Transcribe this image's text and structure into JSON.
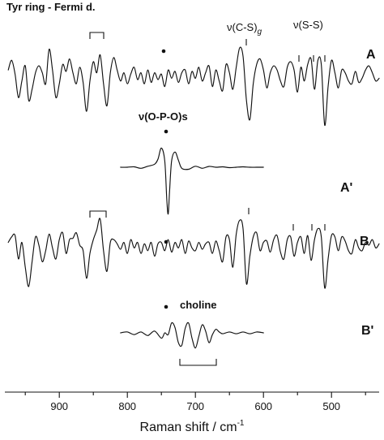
{
  "chart_data": {
    "type": "line",
    "xlabel": "Raman shift / cm",
    "xlabel_sup": "-1",
    "x_ticks": [
      900,
      800,
      700,
      600,
      500
    ],
    "xlim": [
      980,
      430
    ],
    "annotations": {
      "tyr": "Tyr ring - Fermi d.",
      "cs": "ν(C-S)",
      "cs_sub": "g",
      "ss": "ν(S-S)",
      "opo": "ν(O-P-O)s",
      "choline": "choline"
    },
    "series": [
      {
        "name": "A",
        "x": [
          975,
          970,
          965,
          960,
          955,
          950,
          945,
          940,
          935,
          930,
          925,
          920,
          915,
          910,
          905,
          900,
          895,
          890,
          885,
          880,
          875,
          870,
          865,
          860,
          855,
          850,
          845,
          840,
          835,
          830,
          825,
          820,
          815,
          810,
          805,
          800,
          795,
          790,
          785,
          780,
          775,
          770,
          765,
          760,
          755,
          750,
          745,
          740,
          735,
          730,
          725,
          720,
          715,
          710,
          705,
          700,
          695,
          690,
          685,
          680,
          675,
          670,
          665,
          660,
          655,
          650,
          645,
          640,
          635,
          630,
          625,
          620,
          615,
          610,
          605,
          600,
          595,
          590,
          585,
          580,
          575,
          570,
          565,
          560,
          555,
          550,
          545,
          540,
          535,
          530,
          525,
          520,
          515,
          510,
          505,
          500,
          495,
          490,
          485,
          480,
          475,
          470,
          465,
          460,
          455,
          450,
          445,
          440,
          435,
          430
        ],
        "y": [
          0.2,
          0.55,
          0.05,
          -0.8,
          -0.2,
          0.35,
          -0.9,
          -0.5,
          0.1,
          0.35,
          0.1,
          -0.3,
          0.95,
          0.2,
          -0.8,
          -0.3,
          0.4,
          0.15,
          0.6,
          0.1,
          -0.3,
          0.3,
          -0.25,
          -1.3,
          -0.2,
          0.5,
          0.1,
          0.75,
          -0.3,
          -1.1,
          0.1,
          0.65,
          0.2,
          -0.2,
          0.1,
          -0.3,
          0.05,
          0.3,
          -0.15,
          0.1,
          -0.3,
          0.2,
          -0.25,
          0.1,
          -0.15,
          0.05,
          -0.4,
          0.2,
          -0.1,
          0.15,
          -0.25,
          0.1,
          0.2,
          -0.3,
          0.15,
          -0.1,
          0.3,
          -0.2,
          0.1,
          0.35,
          -0.4,
          0.2,
          -0.2,
          -0.55,
          0.4,
          0.1,
          -0.5,
          0.3,
          1.0,
          0.7,
          -0.9,
          -1.6,
          -0.3,
          0.4,
          0.6,
          0.2,
          -0.45,
          0.1,
          0.35,
          0.2,
          -0.2,
          -0.4,
          0.3,
          0.5,
          0.2,
          -0.6,
          0.3,
          -0.2,
          0.4,
          0.6,
          -0.5,
          0.55,
          0.4,
          -1.8,
          -0.4,
          0.55,
          0.1,
          -0.45,
          0.2,
          0.1,
          -0.2,
          -0.3,
          0.15,
          -0.25,
          -0.1,
          0.2,
          0.35,
          0.1,
          -0.2,
          -0.1
        ]
      },
      {
        "name": "A'",
        "x": [
          810,
          800,
          790,
          780,
          770,
          760,
          755,
          750,
          745,
          742,
          740,
          738,
          735,
          730,
          725,
          720,
          710,
          700,
          690,
          680,
          670,
          660,
          650,
          640,
          630,
          620,
          610,
          600
        ],
        "y": [
          0.0,
          0.0,
          0.02,
          -0.05,
          0.05,
          0.15,
          0.4,
          0.95,
          0.3,
          -1.6,
          -2.3,
          -1.2,
          0.3,
          0.75,
          0.35,
          -0.05,
          -0.1,
          0.05,
          -0.05,
          0.04,
          0.0,
          0.02,
          -0.02,
          0.0,
          0.02,
          0.0,
          0.0,
          0.0
        ]
      },
      {
        "name": "B",
        "x": [
          975,
          970,
          965,
          960,
          955,
          950,
          945,
          940,
          935,
          930,
          925,
          920,
          915,
          910,
          905,
          900,
          895,
          890,
          885,
          880,
          875,
          870,
          865,
          860,
          855,
          850,
          845,
          840,
          835,
          830,
          825,
          820,
          815,
          810,
          805,
          800,
          795,
          790,
          785,
          780,
          775,
          770,
          765,
          760,
          755,
          750,
          745,
          740,
          735,
          730,
          725,
          720,
          715,
          710,
          705,
          700,
          695,
          690,
          685,
          680,
          675,
          670,
          665,
          660,
          655,
          650,
          645,
          640,
          635,
          630,
          625,
          620,
          615,
          610,
          605,
          600,
          595,
          590,
          585,
          580,
          575,
          570,
          565,
          560,
          555,
          550,
          545,
          540,
          535,
          530,
          525,
          520,
          515,
          510,
          505,
          500,
          495,
          490,
          485,
          480,
          475,
          470,
          465,
          460,
          455,
          450,
          445,
          440,
          435,
          430
        ],
        "y": [
          0.1,
          0.3,
          0.35,
          -0.5,
          0.1,
          -0.8,
          -1.5,
          -0.6,
          0.3,
          0.0,
          -0.6,
          -0.2,
          0.4,
          -0.1,
          -0.5,
          0.2,
          0.45,
          -0.3,
          0.2,
          0.25,
          0.45,
          0.0,
          -0.2,
          -1.2,
          -0.3,
          0.2,
          0.55,
          0.95,
          -0.2,
          -0.95,
          0.1,
          0.2,
          0.05,
          -0.15,
          0.1,
          -0.3,
          0.2,
          -0.1,
          0.1,
          -0.3,
          0.05,
          -0.2,
          0.1,
          -0.4,
          0.05,
          0.1,
          -0.2,
          0.2,
          -0.25,
          0.1,
          -0.1,
          0.2,
          -0.3,
          0.15,
          -0.1,
          -0.2,
          0.1,
          -0.15,
          0.05,
          0.1,
          -0.3,
          0.15,
          -0.2,
          -0.6,
          0.3,
          0.2,
          -0.8,
          0.4,
          0.9,
          0.6,
          -1.4,
          -0.4,
          0.3,
          0.45,
          -0.2,
          0.1,
          0.15,
          -0.25,
          0.2,
          0.35,
          -0.25,
          -0.5,
          0.2,
          0.3,
          -0.4,
          0.1,
          0.3,
          -0.3,
          0.35,
          -0.55,
          0.2,
          0.6,
          0.3,
          -1.55,
          -0.5,
          0.35,
          0.3,
          -0.2,
          0.3,
          0.15,
          -0.2,
          -0.3,
          0.2,
          -0.1,
          -0.2,
          0.1,
          0.0,
          0.2,
          -0.1,
          0.05
        ]
      },
      {
        "name": "B'",
        "x": [
          810,
          800,
          790,
          780,
          770,
          760,
          750,
          745,
          740,
          735,
          730,
          725,
          720,
          715,
          710,
          705,
          700,
          695,
          690,
          685,
          680,
          675,
          670,
          665,
          660,
          650,
          640,
          630,
          620,
          610,
          600
        ],
        "y": [
          0.0,
          0.05,
          -0.1,
          0.05,
          -0.15,
          0.1,
          -0.3,
          0.0,
          -0.1,
          0.55,
          0.3,
          -0.55,
          -0.7,
          0.25,
          0.55,
          -0.3,
          -0.85,
          -0.2,
          0.45,
          0.1,
          -0.55,
          -0.1,
          0.2,
          0.05,
          -0.05,
          0.05,
          -0.05,
          0.05,
          -0.05,
          0.05,
          0.0
        ]
      }
    ],
    "spectra_labels": [
      "A",
      "A'",
      "B",
      "B'"
    ]
  },
  "colors": {
    "ink": "#111111",
    "background": "#ffffff"
  }
}
